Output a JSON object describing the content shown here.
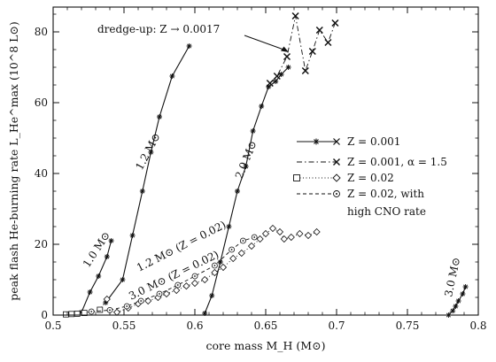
{
  "chart_data": {
    "type": "line",
    "xlabel": "core mass  M_H  (M⊙)",
    "ylabel": "peak flash He-burning rate  L_He^max  (10^8 L⊙)",
    "xlim": [
      0.5,
      0.8
    ],
    "ylim": [
      0,
      87
    ],
    "x_ticks": [
      "0.5",
      "0.55",
      "0.6",
      "0.65",
      "0.7",
      "0.75",
      "0.8"
    ],
    "y_ticks": [
      "0",
      "20",
      "40",
      "60",
      "80"
    ],
    "x_tick_values": [
      0.5,
      0.55,
      0.6,
      0.65,
      0.7,
      0.75,
      0.8
    ],
    "y_tick_values": [
      0,
      20,
      40,
      60,
      80
    ],
    "legend_position": "right",
    "legend": [
      {
        "series": "z001",
        "label": "Z = 0.001",
        "label_line2": ""
      },
      {
        "series": "z001a15",
        "label": "Z = 0.001, α = 1.5",
        "label_line2": ""
      },
      {
        "series": "z002",
        "label": "Z = 0.02",
        "label_line2": ""
      },
      {
        "series": "z002cno",
        "label": "Z = 0.02, with",
        "label_line2": "high CNO rate"
      }
    ],
    "annotations": {
      "dredge_up": "dredge-up: Z → 0.0017",
      "m10": "1.0 M⊙",
      "m12": "1.2 M⊙",
      "m12z": "1.2 M⊙ (Z = 0.02)",
      "m30z": "3.0 M⊙ (Z = 0.02)",
      "m20": "2.0 M⊙",
      "m30": "3.0 M⊙"
    },
    "series": [
      {
        "id": "z001",
        "style": "solid",
        "marker": "star",
        "tracks": [
          [
            [
              0.52,
              0.8
            ],
            [
              0.526,
              6.5
            ],
            [
              0.532,
              11.0
            ],
            [
              0.538,
              16.5
            ],
            [
              0.541,
              21.0
            ]
          ],
          [
            [
              0.537,
              3.5
            ],
            [
              0.549,
              10.0
            ],
            [
              0.556,
              22.5
            ],
            [
              0.563,
              35.0
            ],
            [
              0.569,
              46.0
            ],
            [
              0.575,
              56.0
            ],
            [
              0.584,
              67.5
            ],
            [
              0.596,
              76.0
            ]
          ],
          [
            [
              0.607,
              0.5
            ],
            [
              0.612,
              5.5
            ],
            [
              0.618,
              15.0
            ],
            [
              0.624,
              25.0
            ],
            [
              0.63,
              35.0
            ],
            [
              0.636,
              42.0
            ],
            [
              0.641,
              52.0
            ],
            [
              0.647,
              59.0
            ],
            [
              0.652,
              64.5
            ],
            [
              0.657,
              66.0
            ],
            [
              0.661,
              68.0
            ],
            [
              0.666,
              70.0
            ]
          ],
          [
            [
              0.779,
              0.0
            ],
            [
              0.782,
              1.2
            ],
            [
              0.784,
              2.5
            ],
            [
              0.786,
              4.0
            ],
            [
              0.789,
              6.0
            ],
            [
              0.791,
              8.0
            ]
          ]
        ]
      },
      {
        "id": "z001a15",
        "style": "dashdot",
        "marker": "x",
        "tracks": [
          [
            [
              0.653,
              65.5
            ],
            [
              0.658,
              67.5
            ],
            [
              0.665,
              73.0
            ],
            [
              0.671,
              84.5
            ],
            [
              0.678,
              69.0
            ],
            [
              0.683,
              74.5
            ],
            [
              0.688,
              80.5
            ],
            [
              0.694,
              77.0
            ],
            [
              0.699,
              82.5
            ]
          ]
        ]
      },
      {
        "id": "z002",
        "style": "dotted",
        "marker": "diamond",
        "tracks": [
          [
            [
              0.509,
              0.2
            ],
            [
              0.513,
              0.3
            ],
            [
              0.517,
              0.4
            ],
            [
              0.522,
              0.6
            ],
            [
              0.533,
              1.5
            ],
            [
              0.538,
              4.5
            ]
          ],
          [
            [
              0.545,
              0.8
            ],
            [
              0.553,
              2.0
            ],
            [
              0.56,
              3.2
            ],
            [
              0.567,
              4.0
            ],
            [
              0.574,
              5.0
            ],
            [
              0.58,
              6.0
            ],
            [
              0.587,
              7.0
            ],
            [
              0.594,
              8.2
            ],
            [
              0.6,
              9.0
            ],
            [
              0.607,
              10.0
            ],
            [
              0.614,
              12.0
            ],
            [
              0.62,
              13.5
            ],
            [
              0.627,
              16.0
            ],
            [
              0.633,
              17.5
            ],
            [
              0.64,
              19.5
            ],
            [
              0.646,
              21.5
            ],
            [
              0.65,
              23.0
            ],
            [
              0.655,
              24.5
            ],
            [
              0.66,
              23.5
            ],
            [
              0.663,
              21.5
            ],
            [
              0.668,
              22.0
            ],
            [
              0.674,
              23.0
            ],
            [
              0.68,
              22.5
            ],
            [
              0.686,
              23.5
            ]
          ]
        ]
      },
      {
        "id": "z002cno",
        "style": "dashed",
        "marker": "circle",
        "tracks": [
          [
            [
              0.527,
              1.0
            ],
            [
              0.54,
              1.4
            ],
            [
              0.552,
              2.5
            ],
            [
              0.562,
              4.0
            ],
            [
              0.575,
              6.0
            ],
            [
              0.588,
              8.5
            ],
            [
              0.6,
              11.0
            ],
            [
              0.614,
              14.0
            ],
            [
              0.626,
              18.5
            ],
            [
              0.634,
              21.0
            ],
            [
              0.642,
              22.0
            ]
          ]
        ]
      }
    ]
  }
}
